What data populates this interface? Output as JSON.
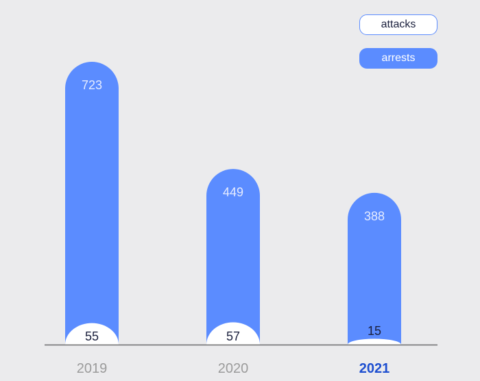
{
  "chart_data": {
    "type": "bar",
    "categories": [
      "2019",
      "2020",
      "2021"
    ],
    "highlight_category": "2021",
    "series": [
      {
        "name": "arrests",
        "values": [
          723,
          449,
          388
        ],
        "color": "#5b8cff"
      },
      {
        "name": "attacks",
        "values": [
          55,
          57,
          15
        ],
        "color": "#ffffff"
      }
    ],
    "legend": {
      "position": "top-right",
      "items": [
        "attacks",
        "arrests"
      ]
    },
    "ylim": [
      0,
      723
    ],
    "grid": false,
    "xlabel": "",
    "ylabel": ""
  },
  "colors": {
    "background": "#ebebed",
    "arrests": "#5b8cff",
    "attacks": "#ffffff",
    "axis": "#6b6b6b",
    "tick": "#9b9b9b",
    "tick_highlight": "#1e4fd0",
    "label_dark": "#1a1f3c",
    "label_light": "#e6ecff"
  }
}
